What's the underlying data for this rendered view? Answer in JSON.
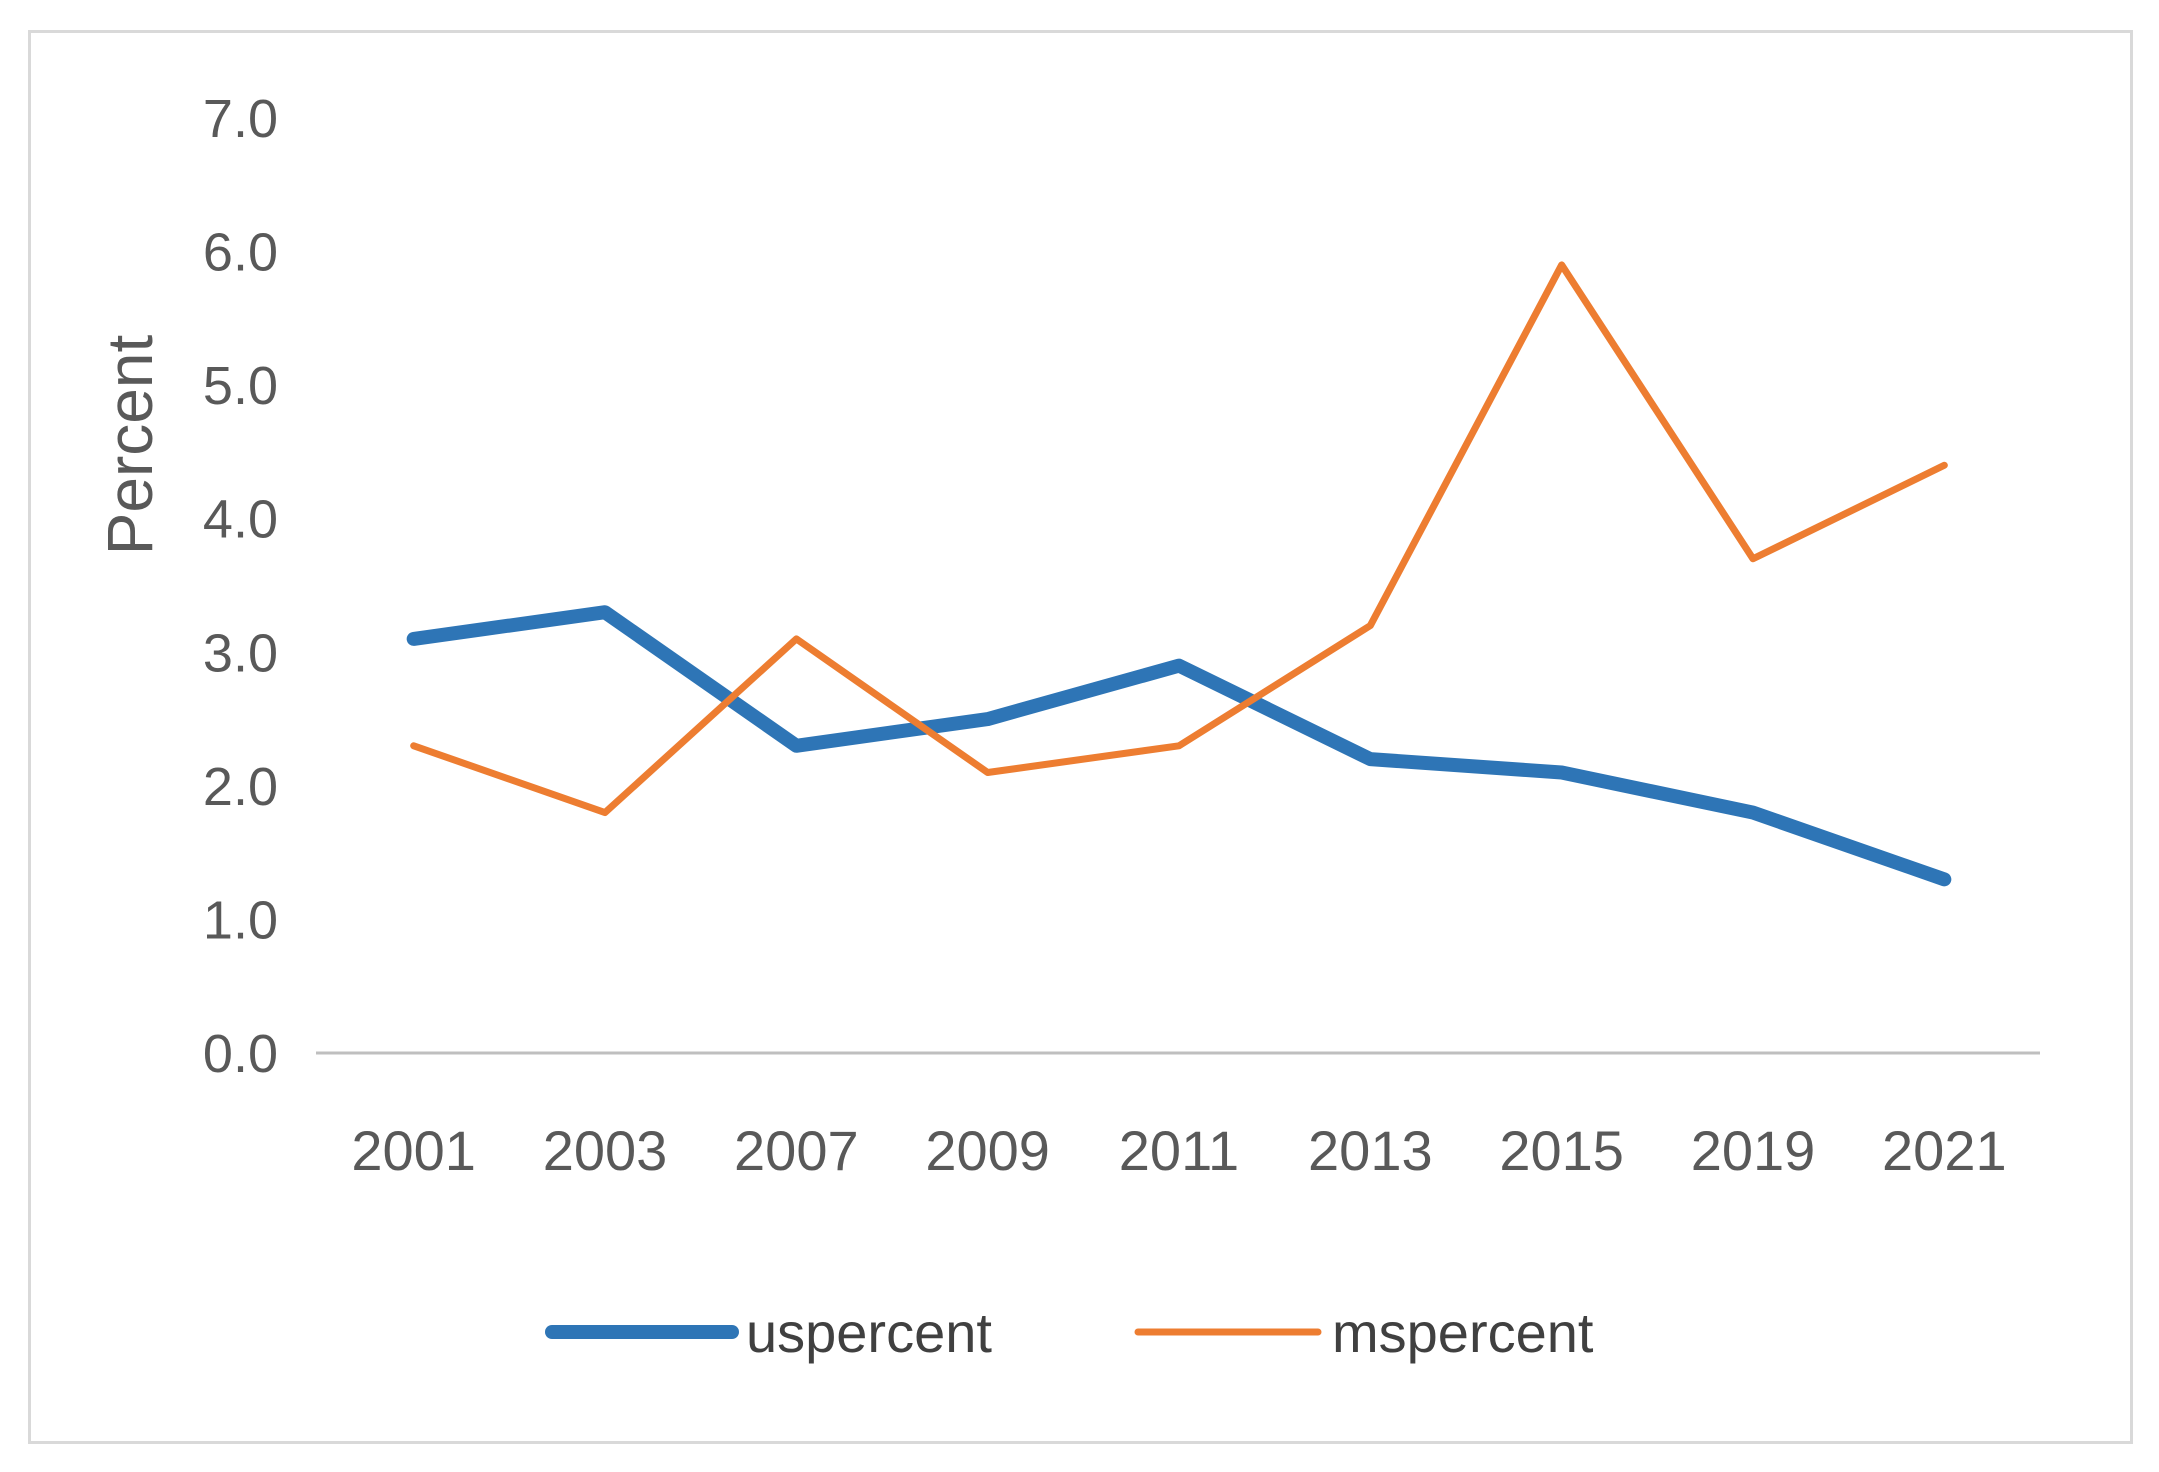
{
  "figure": {
    "kind": "excel-style line chart",
    "background": "#ffffff",
    "frame_border_color": "#d9d9d9"
  },
  "colors": {
    "axis_line": "#bfbfbf",
    "tick_text": "#595959",
    "axis_title_text": "#595959",
    "legend_text": "#404040",
    "series_blue": "#2e75b6",
    "series_orange": "#ed7d31"
  },
  "chart_data": {
    "type": "line",
    "title": "",
    "xlabel": "",
    "ylabel": "Percent",
    "ylim": [
      0.0,
      7.0
    ],
    "y_tick_step": 1.0,
    "y_ticks": [
      "0.0",
      "1.0",
      "2.0",
      "3.0",
      "4.0",
      "5.0",
      "6.0",
      "7.0"
    ],
    "grid": false,
    "legend_position": "bottom",
    "categories": [
      "2001",
      "2003",
      "2007",
      "2009",
      "2011",
      "2013",
      "2015",
      "2019",
      "2021"
    ],
    "series": [
      {
        "name": "uspercent",
        "color": "#2e75b6",
        "stroke_width": 14,
        "values": [
          3.1,
          3.3,
          2.3,
          2.5,
          2.9,
          2.2,
          2.1,
          1.8,
          1.3
        ]
      },
      {
        "name": "mspercent",
        "color": "#ed7d31",
        "stroke_width": 7,
        "values": [
          2.3,
          1.8,
          3.1,
          2.1,
          2.3,
          3.2,
          5.9,
          3.7,
          4.4
        ]
      }
    ]
  }
}
